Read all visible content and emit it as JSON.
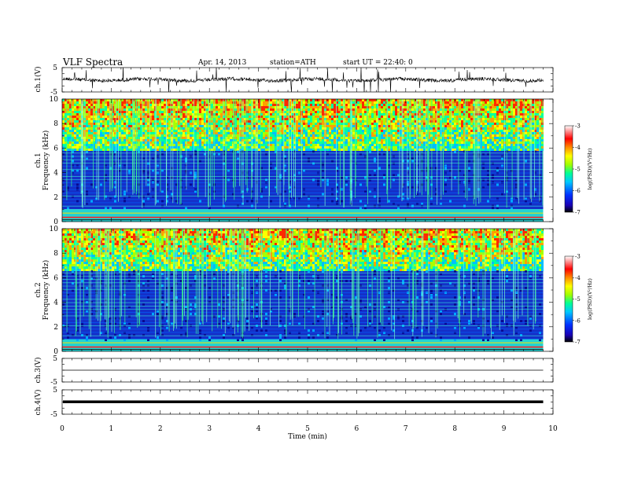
{
  "header": {
    "title": "VLF Spectra",
    "date": "Apr. 14, 2013",
    "station": "station=ATH",
    "start": "start UT = 22:40: 0"
  },
  "panels": {
    "ch1_wave_label": "ch.1(V)",
    "ch1_spec_label": "ch.1",
    "ch2_spec_label": "ch.2",
    "freq_label": "Frequency (kHz)",
    "ch3_wave_label": "ch.3(V)",
    "ch4_wave_label": "ch.4(V)",
    "colorbar_label": "log(PSD)(V²/Hz)"
  },
  "chart_data": {
    "type": "heatmap",
    "xlabel": "Time (min)",
    "xlim": [
      0,
      10
    ],
    "x_ticks": [
      0,
      1,
      2,
      3,
      4,
      5,
      6,
      7,
      8,
      9,
      10
    ],
    "data_end_min": 9.8,
    "waveform_ylim": [
      -5,
      5
    ],
    "waveform_ticks": [
      "5",
      "-5"
    ],
    "frequency_ylim_khz": [
      0,
      10
    ],
    "frequency_ticks": [
      0,
      2,
      4,
      6,
      8,
      10
    ],
    "colorbar": {
      "range": [
        -7,
        -3
      ],
      "ticks": [
        "-3",
        "-4",
        "-5",
        "-6",
        "-7"
      ],
      "colors": [
        "#000000",
        "#1a00b4",
        "#0032ff",
        "#00c8ff",
        "#00ff96",
        "#a0ff00",
        "#ffff00",
        "#ff8c00",
        "#ff0000",
        "#ffffff"
      ]
    },
    "spectrograms": [
      {
        "channel": "ch.1",
        "low_band_khz": [
          0,
          1
        ],
        "quiet_band_khz": [
          1,
          5.8
        ],
        "active_band_khz": [
          5.8,
          10
        ]
      },
      {
        "channel": "ch.2",
        "low_band_khz": [
          0,
          1
        ],
        "quiet_band_khz": [
          1,
          6.6
        ],
        "active_band_khz": [
          6.6,
          10
        ]
      }
    ]
  }
}
